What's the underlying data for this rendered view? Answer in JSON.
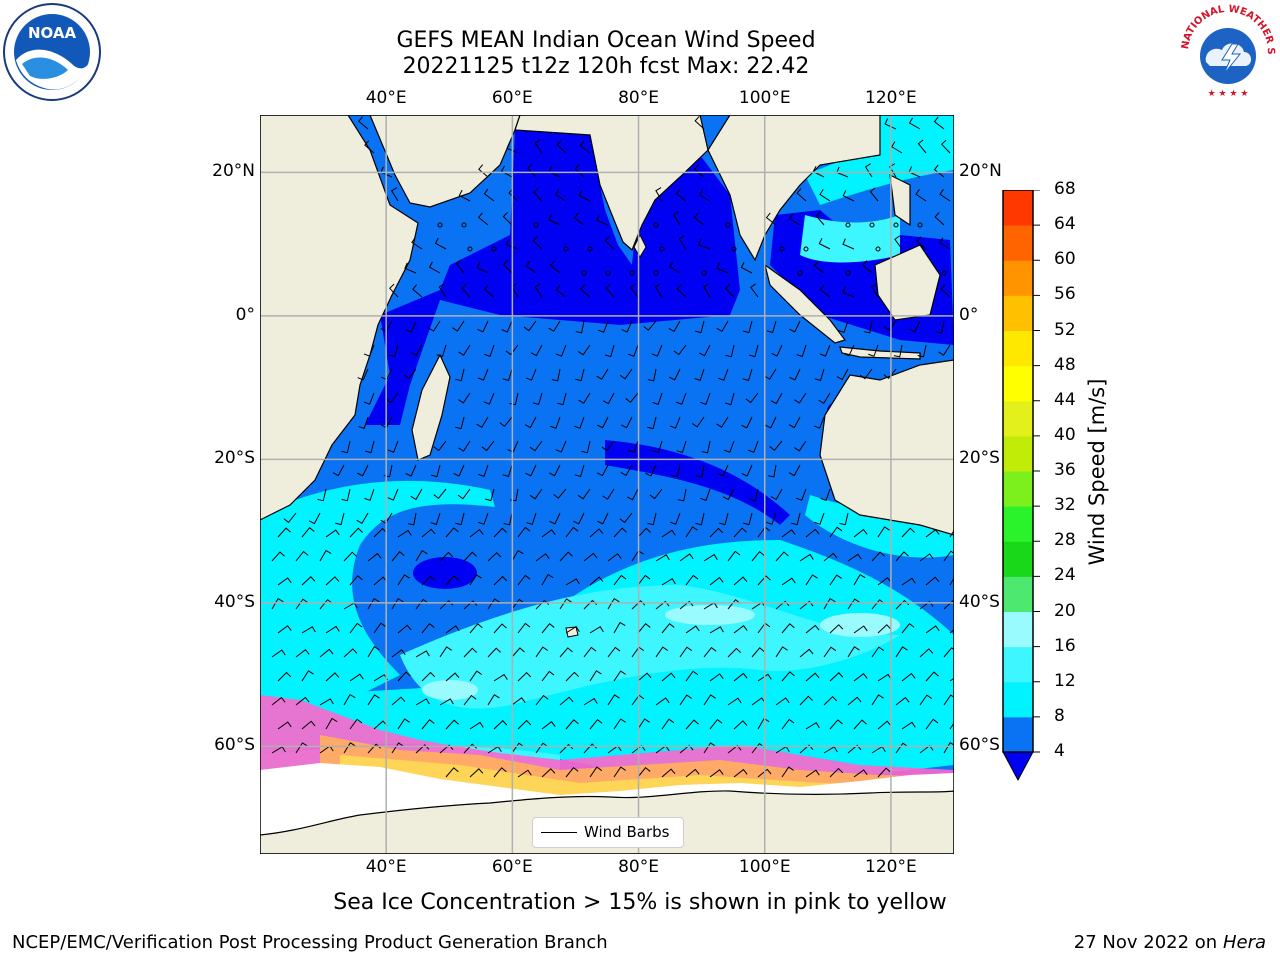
{
  "title_line1": "GEFS MEAN Indian Ocean Wind Speed",
  "title_line2": "20221125 t12z 120h fcst   Max: 22.42",
  "map": {
    "lon_ticks": [
      "40°E",
      "60°E",
      "80°E",
      "100°E",
      "120°E"
    ],
    "lat_ticks": [
      "20°N",
      "0°",
      "20°S",
      "40°S",
      "60°S"
    ],
    "lon_values": [
      40,
      60,
      80,
      100,
      120
    ],
    "lat_values": [
      20,
      0,
      -20,
      -40,
      -60
    ],
    "lon_range": [
      20,
      130
    ],
    "lat_range": [
      -75,
      28
    ],
    "gridlines": true,
    "land_color": "#efeedd",
    "ice_colors": [
      "#ff66cc",
      "#ffaa66",
      "#ffdd55"
    ]
  },
  "colorbar": {
    "title": "Wind Speed [m/s]",
    "ticks": [
      "4",
      "8",
      "12",
      "16",
      "20",
      "24",
      "28",
      "32",
      "36",
      "40",
      "44",
      "48",
      "52",
      "56",
      "60",
      "64",
      "68"
    ],
    "colors": [
      "#0a73f3",
      "#00f3ff",
      "#3ef6ff",
      "#9afbff",
      "#4ce86f",
      "#19d719",
      "#2bf32b",
      "#7bf01c",
      "#c0ec07",
      "#e3f01c",
      "#ffff00",
      "#ffe800",
      "#ffc000",
      "#ff9400",
      "#ff6400",
      "#ff3800",
      "#ff1000"
    ],
    "under_color": "#0000f3"
  },
  "legend": {
    "label": "Wind Barbs"
  },
  "note": "Sea Ice Concentration > 15% is shown in pink to yellow",
  "footer_left": "NCEP/EMC/Verification Post Processing Product Generation Branch",
  "footer_right_prefix": "27 Nov 2022 on",
  "footer_right_host": "Hera",
  "logos": {
    "noaa_text": "NOAA",
    "nws_text": "NATIONAL WEATHER SERVICE"
  }
}
